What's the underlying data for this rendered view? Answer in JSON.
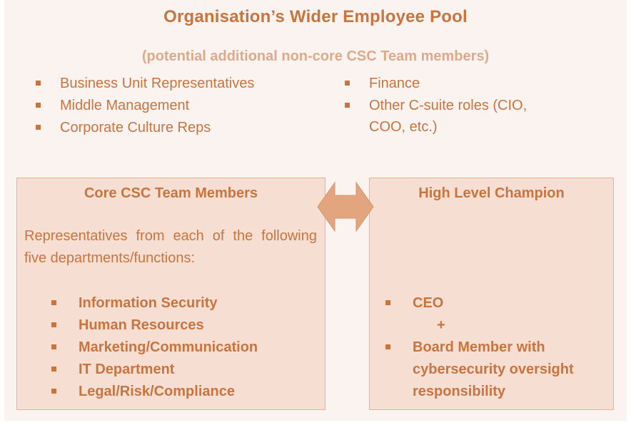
{
  "title": "Organisation’s Wider Employee Pool",
  "subtitle": "(potential additional non-core CSC Team members)",
  "pool_left": [
    "Business Unit Representatives",
    "Middle Management",
    "Corporate Culture Reps"
  ],
  "pool_right": [
    "Finance",
    "Other C-suite roles (CIO, COO, etc.)"
  ],
  "core": {
    "title": "Core CSC Team Members",
    "description": "Representatives from each of the following five departments/functions:",
    "items": [
      "Information Security",
      "Human Resources",
      "Marketing/Communication",
      "IT Department",
      "Legal/Risk/Compliance"
    ]
  },
  "champion": {
    "title": "High Level Champion",
    "item1": "CEO",
    "plus": "+",
    "item2": "Board Member with cybersecurity oversight responsibility"
  },
  "colors": {
    "text": "#c8743f",
    "subtitle": "#dcaa8b",
    "box_fill": "#f6dfd2",
    "box_border": "#e2b596",
    "arrow_fill": "#e3a57d",
    "background": "#fbf3ef"
  },
  "icons": {
    "bullet": "square-bullet-icon",
    "connector": "double-arrow-icon"
  }
}
